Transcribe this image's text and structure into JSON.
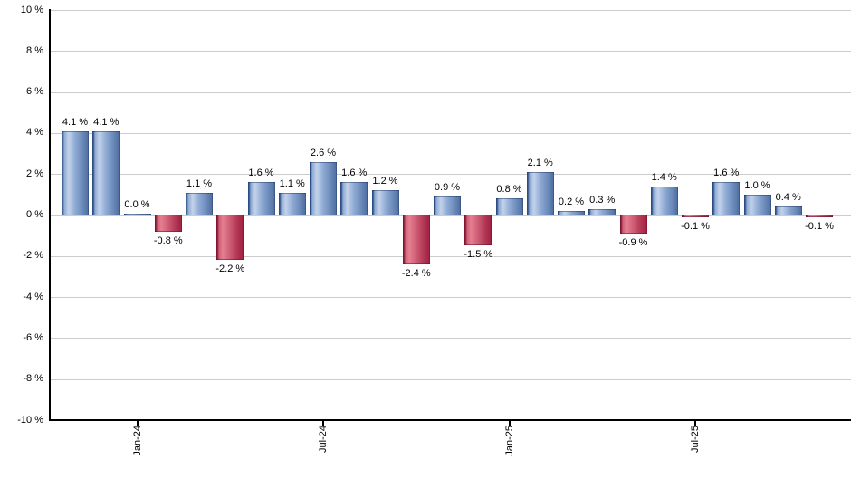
{
  "chart_data": {
    "type": "bar",
    "title": "",
    "xlabel": "",
    "ylabel": "",
    "ylim": [
      -10,
      10
    ],
    "grid": true,
    "legend_position": "none",
    "background": "#ffffff",
    "bar_count": 25,
    "values": [
      4.1,
      4.1,
      0.0,
      -0.8,
      1.1,
      -2.2,
      1.6,
      1.1,
      2.6,
      1.6,
      1.2,
      -2.4,
      0.9,
      -1.5,
      0.8,
      2.1,
      0.2,
      0.3,
      -0.9,
      1.4,
      -0.1,
      1.6,
      1.0,
      0.4,
      -0.1
    ],
    "bar_labels": [
      "4.1 %",
      "4.1 %",
      "0.0 %",
      "-0.8 %",
      "1.1 %",
      "-2.2 %",
      "1.6 %",
      "1.1 %",
      "2.6 %",
      "1.6 %",
      "1.2 %",
      "-2.4 %",
      "0.9 %",
      "-1.5 %",
      "0.8 %",
      "2.1 %",
      "0.2 %",
      "0.3 %",
      "-0.9 %",
      "1.4 %",
      "-0.1 %",
      "1.6 %",
      "1.0 %",
      "0.4 %",
      "-0.1 %"
    ],
    "x_ticks": [
      {
        "bar_index": 2,
        "label": "Jan-24"
      },
      {
        "bar_index": 8,
        "label": "Jul-24"
      },
      {
        "bar_index": 14,
        "label": "Jan-25"
      },
      {
        "bar_index": 20,
        "label": "Jul-25"
      }
    ],
    "y_ticks": [
      {
        "value": 10,
        "label": "10 %"
      },
      {
        "value": 8,
        "label": "8 %"
      },
      {
        "value": 6,
        "label": "6 %"
      },
      {
        "value": 4,
        "label": "4 %"
      },
      {
        "value": 2,
        "label": "2 %"
      },
      {
        "value": 0,
        "label": "0 %"
      },
      {
        "value": -2,
        "label": "-2 %"
      },
      {
        "value": -4,
        "label": "-4 %"
      },
      {
        "value": -6,
        "label": "-6 %"
      },
      {
        "value": -8,
        "label": "-8 %"
      },
      {
        "value": -10,
        "label": "-10 %"
      }
    ],
    "colors": {
      "positive_bar": {
        "edge": "#2c4c83",
        "mid": "#8fabd4",
        "light": "#c3d2ea",
        "mid2": "#6e8dbc",
        "dark": "#4c6c9f"
      },
      "negative_bar": {
        "edge": "#7e1630",
        "mid": "#d05e77",
        "light": "#e4808f",
        "mid2": "#b53a57",
        "dark": "#9d2040"
      },
      "gridline": "#cbcbcb",
      "axis": "#000000",
      "label_text": "#000000"
    }
  }
}
